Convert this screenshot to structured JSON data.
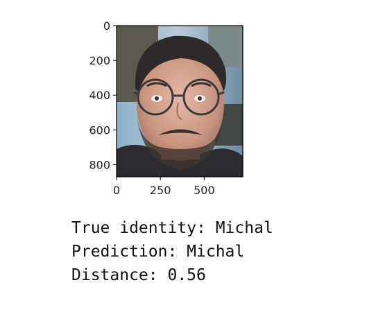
{
  "chart_data": {
    "type": "image",
    "title": "",
    "xlabel": "",
    "ylabel": "",
    "xlim": [
      0,
      720
    ],
    "ylim": [
      870,
      0
    ],
    "x_ticks": [
      0,
      250,
      500
    ],
    "x_tick_labels": [
      "0",
      "250",
      "500"
    ],
    "y_ticks": [
      0,
      200,
      400,
      600,
      800
    ],
    "y_tick_labels": [
      "0",
      "200",
      "400",
      "600",
      "800"
    ],
    "image_content": "photo-face"
  },
  "output": {
    "true_identity": "True identity: Michal",
    "prediction": "Prediction: Michal",
    "distance": "Distance: 0.56"
  }
}
